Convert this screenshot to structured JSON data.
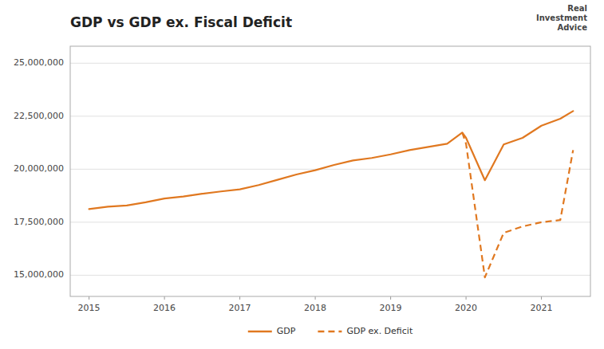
{
  "chart_data": {
    "type": "line",
    "title": "GDP vs GDP ex. Fiscal Deficit",
    "annotations": [
      {
        "text": "Real\nInvestment\nAdvice"
      }
    ],
    "xlim": [
      2014.75,
      2021.65
    ],
    "xticks": [
      2015,
      2016,
      2017,
      2018,
      2019,
      2020,
      2021
    ],
    "ylim": [
      14000000,
      25800000
    ],
    "yticks": [
      {
        "value": 15000000,
        "label": "15,000,000"
      },
      {
        "value": 17500000,
        "label": "17,500,000"
      },
      {
        "value": 20000000,
        "label": "20,000,000"
      },
      {
        "value": 22500000,
        "label": "22,500,000"
      },
      {
        "value": 25000000,
        "label": "25,000,000"
      }
    ],
    "grid": true,
    "legend": "bottom",
    "series": [
      {
        "name": "GDP",
        "color": "#E07820",
        "line_style": "solid",
        "x": [
          2015.0,
          2015.25,
          2015.5,
          2015.75,
          2016.0,
          2016.25,
          2016.5,
          2016.75,
          2017.0,
          2017.25,
          2017.5,
          2017.75,
          2018.0,
          2018.25,
          2018.5,
          2018.75,
          2019.0,
          2019.25,
          2019.5,
          2019.75,
          2019.95,
          2020.0,
          2020.25,
          2020.5,
          2020.75,
          2021.0,
          2021.25,
          2021.42
        ],
        "values": [
          18120000,
          18230000,
          18290000,
          18440000,
          18620000,
          18710000,
          18840000,
          18950000,
          19050000,
          19250000,
          19500000,
          19750000,
          19950000,
          20200000,
          20410000,
          20530000,
          20700000,
          20900000,
          21050000,
          21200000,
          21730000,
          21480000,
          19480000,
          21170000,
          21480000,
          22050000,
          22380000,
          22740000
        ]
      },
      {
        "name": "GDP ex. Deficit",
        "color": "#E07820",
        "line_style": "dashed",
        "x": [
          2019.95,
          2020.0,
          2020.25,
          2020.5,
          2020.75,
          2021.0,
          2021.25,
          2021.42
        ],
        "values": [
          21730000,
          21200000,
          14900000,
          17000000,
          17300000,
          17500000,
          17600000,
          20900000
        ]
      }
    ]
  }
}
